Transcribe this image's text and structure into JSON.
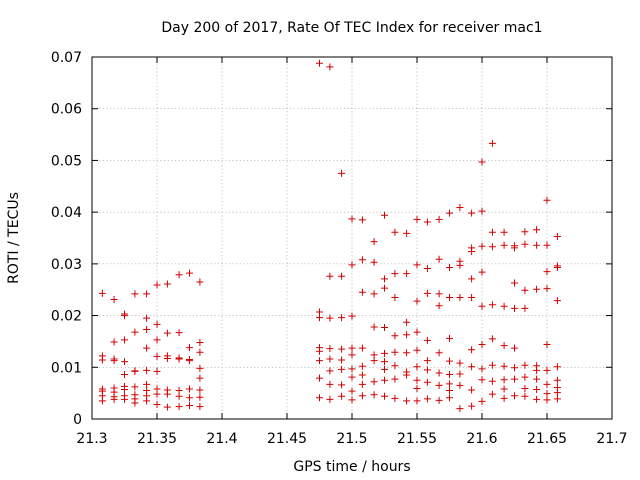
{
  "chart_data": {
    "type": "scatter",
    "title": "Day 200 of 2017, Rate Of TEC Index for receiver mac1",
    "xlabel": "GPS time / hours",
    "ylabel": "ROTI / TECUs",
    "xlim": [
      21.3,
      21.7
    ],
    "ylim": [
      0,
      0.07
    ],
    "xticks": [
      "21.3",
      "21.35",
      "21.4",
      "21.45",
      "21.5",
      "21.55",
      "21.6",
      "21.65",
      "21.7"
    ],
    "yticks": [
      "0",
      "0.01",
      "0.02",
      "0.03",
      "0.04",
      "0.05",
      "0.06",
      "0.07"
    ],
    "grid": true,
    "marker_color": "#d40000",
    "marker": "plus",
    "series": [
      {
        "x": [
          21.308,
          21.308,
          21.308,
          21.308,
          21.308,
          21.308,
          21.308,
          21.317,
          21.317,
          21.317,
          21.317,
          21.317,
          21.317,
          21.317,
          21.317,
          21.325,
          21.325,
          21.325,
          21.325,
          21.325,
          21.325,
          21.325,
          21.325,
          21.325,
          21.333,
          21.333,
          21.333,
          21.333,
          21.333,
          21.333,
          21.333,
          21.333,
          21.342,
          21.342,
          21.342,
          21.342,
          21.342,
          21.342,
          21.342,
          21.342,
          21.342,
          21.35,
          21.35,
          21.35,
          21.35,
          21.35,
          21.35,
          21.35,
          21.35,
          21.358,
          21.358,
          21.358,
          21.358,
          21.358,
          21.358,
          21.358,
          21.367,
          21.367,
          21.367,
          21.367,
          21.367,
          21.367,
          21.367,
          21.375,
          21.375,
          21.375,
          21.375,
          21.375,
          21.375,
          21.375,
          21.383,
          21.383,
          21.383,
          21.383,
          21.383,
          21.383,
          21.383,
          21.383,
          21.475,
          21.475,
          21.475,
          21.475,
          21.475,
          21.475,
          21.475,
          21.475,
          21.483,
          21.483,
          21.483,
          21.483,
          21.483,
          21.483,
          21.483,
          21.483,
          21.492,
          21.492,
          21.492,
          21.492,
          21.492,
          21.492,
          21.492,
          21.492,
          21.5,
          21.5,
          21.5,
          21.5,
          21.5,
          21.5,
          21.5,
          21.5,
          21.5,
          21.508,
          21.508,
          21.508,
          21.508,
          21.508,
          21.508,
          21.508,
          21.508,
          21.517,
          21.517,
          21.517,
          21.517,
          21.517,
          21.517,
          21.517,
          21.517,
          21.525,
          21.525,
          21.525,
          21.525,
          21.525,
          21.525,
          21.525,
          21.525,
          21.525,
          21.533,
          21.533,
          21.533,
          21.533,
          21.533,
          21.533,
          21.533,
          21.533,
          21.542,
          21.542,
          21.542,
          21.542,
          21.542,
          21.542,
          21.542,
          21.542,
          21.55,
          21.55,
          21.55,
          21.55,
          21.55,
          21.55,
          21.55,
          21.55,
          21.55,
          21.558,
          21.558,
          21.558,
          21.558,
          21.558,
          21.558,
          21.558,
          21.558,
          21.567,
          21.567,
          21.567,
          21.567,
          21.567,
          21.567,
          21.567,
          21.567,
          21.575,
          21.575,
          21.575,
          21.575,
          21.575,
          21.575,
          21.575,
          21.575,
          21.575,
          21.583,
          21.583,
          21.583,
          21.583,
          21.583,
          21.583,
          21.583,
          21.583,
          21.592,
          21.592,
          21.592,
          21.592,
          21.592,
          21.592,
          21.592,
          21.592,
          21.592,
          21.6,
          21.6,
          21.6,
          21.6,
          21.6,
          21.6,
          21.6,
          21.6,
          21.6,
          21.608,
          21.608,
          21.608,
          21.608,
          21.608,
          21.608,
          21.608,
          21.608,
          21.617,
          21.617,
          21.617,
          21.617,
          21.617,
          21.617,
          21.617,
          21.617,
          21.625,
          21.625,
          21.625,
          21.625,
          21.625,
          21.625,
          21.625,
          21.625,
          21.633,
          21.633,
          21.633,
          21.633,
          21.633,
          21.633,
          21.633,
          21.633,
          21.642,
          21.642,
          21.642,
          21.642,
          21.642,
          21.642,
          21.642,
          21.642,
          21.65,
          21.65,
          21.65,
          21.65,
          21.65,
          21.65,
          21.65,
          21.65,
          21.65,
          21.658,
          21.658,
          21.658,
          21.658,
          21.658,
          21.658,
          21.658,
          21.658,
          21.658
        ],
        "y": [
          0.0243,
          0.0122,
          0.0114,
          0.0058,
          0.0054,
          0.0045,
          0.0035,
          0.0231,
          0.0149,
          0.0116,
          0.0113,
          0.006,
          0.0052,
          0.0043,
          0.0038,
          0.0203,
          0.02,
          0.0153,
          0.0111,
          0.0086,
          0.0063,
          0.0057,
          0.0045,
          0.0038,
          0.0242,
          0.0168,
          0.0093,
          0.0092,
          0.0062,
          0.0047,
          0.0039,
          0.0031,
          0.0242,
          0.0195,
          0.0173,
          0.0137,
          0.0094,
          0.0067,
          0.0055,
          0.0045,
          0.0035,
          0.0259,
          0.0183,
          0.0153,
          0.0121,
          0.0092,
          0.0058,
          0.0048,
          0.0028,
          0.0261,
          0.0166,
          0.0122,
          0.0117,
          0.0056,
          0.0048,
          0.0023,
          0.0279,
          0.0167,
          0.0118,
          0.0116,
          0.0055,
          0.0044,
          0.0024,
          0.0282,
          0.0138,
          0.0115,
          0.0113,
          0.0058,
          0.0041,
          0.0026,
          0.0265,
          0.0148,
          0.0129,
          0.0098,
          0.0079,
          0.0056,
          0.0042,
          0.0024,
          0.0688,
          0.0207,
          0.0196,
          0.0138,
          0.0131,
          0.0113,
          0.0079,
          0.0041,
          0.0681,
          0.0276,
          0.0195,
          0.0136,
          0.0116,
          0.0093,
          0.0067,
          0.0038,
          0.0475,
          0.0276,
          0.0196,
          0.0135,
          0.0114,
          0.0096,
          0.0066,
          0.0044,
          0.0387,
          0.0298,
          0.0199,
          0.0137,
          0.0124,
          0.0097,
          0.0081,
          0.0054,
          0.0037,
          0.0385,
          0.0308,
          0.0245,
          0.0137,
          0.0102,
          0.0085,
          0.0067,
          0.0045,
          0.0343,
          0.0303,
          0.0242,
          0.0178,
          0.0124,
          0.0113,
          0.0072,
          0.0047,
          0.0394,
          0.0271,
          0.0253,
          0.0177,
          0.0127,
          0.0111,
          0.0096,
          0.0075,
          0.0044,
          0.0361,
          0.0281,
          0.0235,
          0.0161,
          0.0129,
          0.0103,
          0.0077,
          0.004,
          0.0359,
          0.0281,
          0.0187,
          0.0163,
          0.0128,
          0.0091,
          0.0085,
          0.0035,
          0.0386,
          0.0298,
          0.0228,
          0.0168,
          0.0133,
          0.0101,
          0.0075,
          0.0059,
          0.0035,
          0.0381,
          0.0291,
          0.0243,
          0.0152,
          0.0113,
          0.0095,
          0.0071,
          0.0039,
          0.0386,
          0.0309,
          0.0242,
          0.0219,
          0.0128,
          0.0089,
          0.0065,
          0.0036,
          0.0398,
          0.0293,
          0.0235,
          0.0156,
          0.0112,
          0.0086,
          0.0068,
          0.0055,
          0.0041,
          0.0409,
          0.0305,
          0.0297,
          0.0235,
          0.0108,
          0.0087,
          0.0065,
          0.002,
          0.0398,
          0.0331,
          0.0324,
          0.0271,
          0.0235,
          0.0134,
          0.0101,
          0.0056,
          0.0025,
          0.0497,
          0.0402,
          0.0334,
          0.0284,
          0.0218,
          0.0144,
          0.0097,
          0.0076,
          0.0034,
          0.0533,
          0.0361,
          0.0333,
          0.0221,
          0.0155,
          0.0104,
          0.0073,
          0.0048,
          0.0361,
          0.0336,
          0.0218,
          0.0142,
          0.0102,
          0.0076,
          0.0058,
          0.004,
          0.0335,
          0.0331,
          0.0263,
          0.0214,
          0.0137,
          0.0099,
          0.0077,
          0.0045,
          0.0362,
          0.0338,
          0.0249,
          0.0214,
          0.0104,
          0.0081,
          0.0059,
          0.0044,
          0.0366,
          0.0336,
          0.0251,
          0.0103,
          0.0094,
          0.0077,
          0.0057,
          0.0038,
          0.0423,
          0.0336,
          0.0285,
          0.0252,
          0.0144,
          0.0094,
          0.0067,
          0.0049,
          0.0037,
          0.0353,
          0.0296,
          0.0293,
          0.0229,
          0.0101,
          0.0075,
          0.0061,
          0.0051,
          0.0039
        ]
      }
    ]
  }
}
